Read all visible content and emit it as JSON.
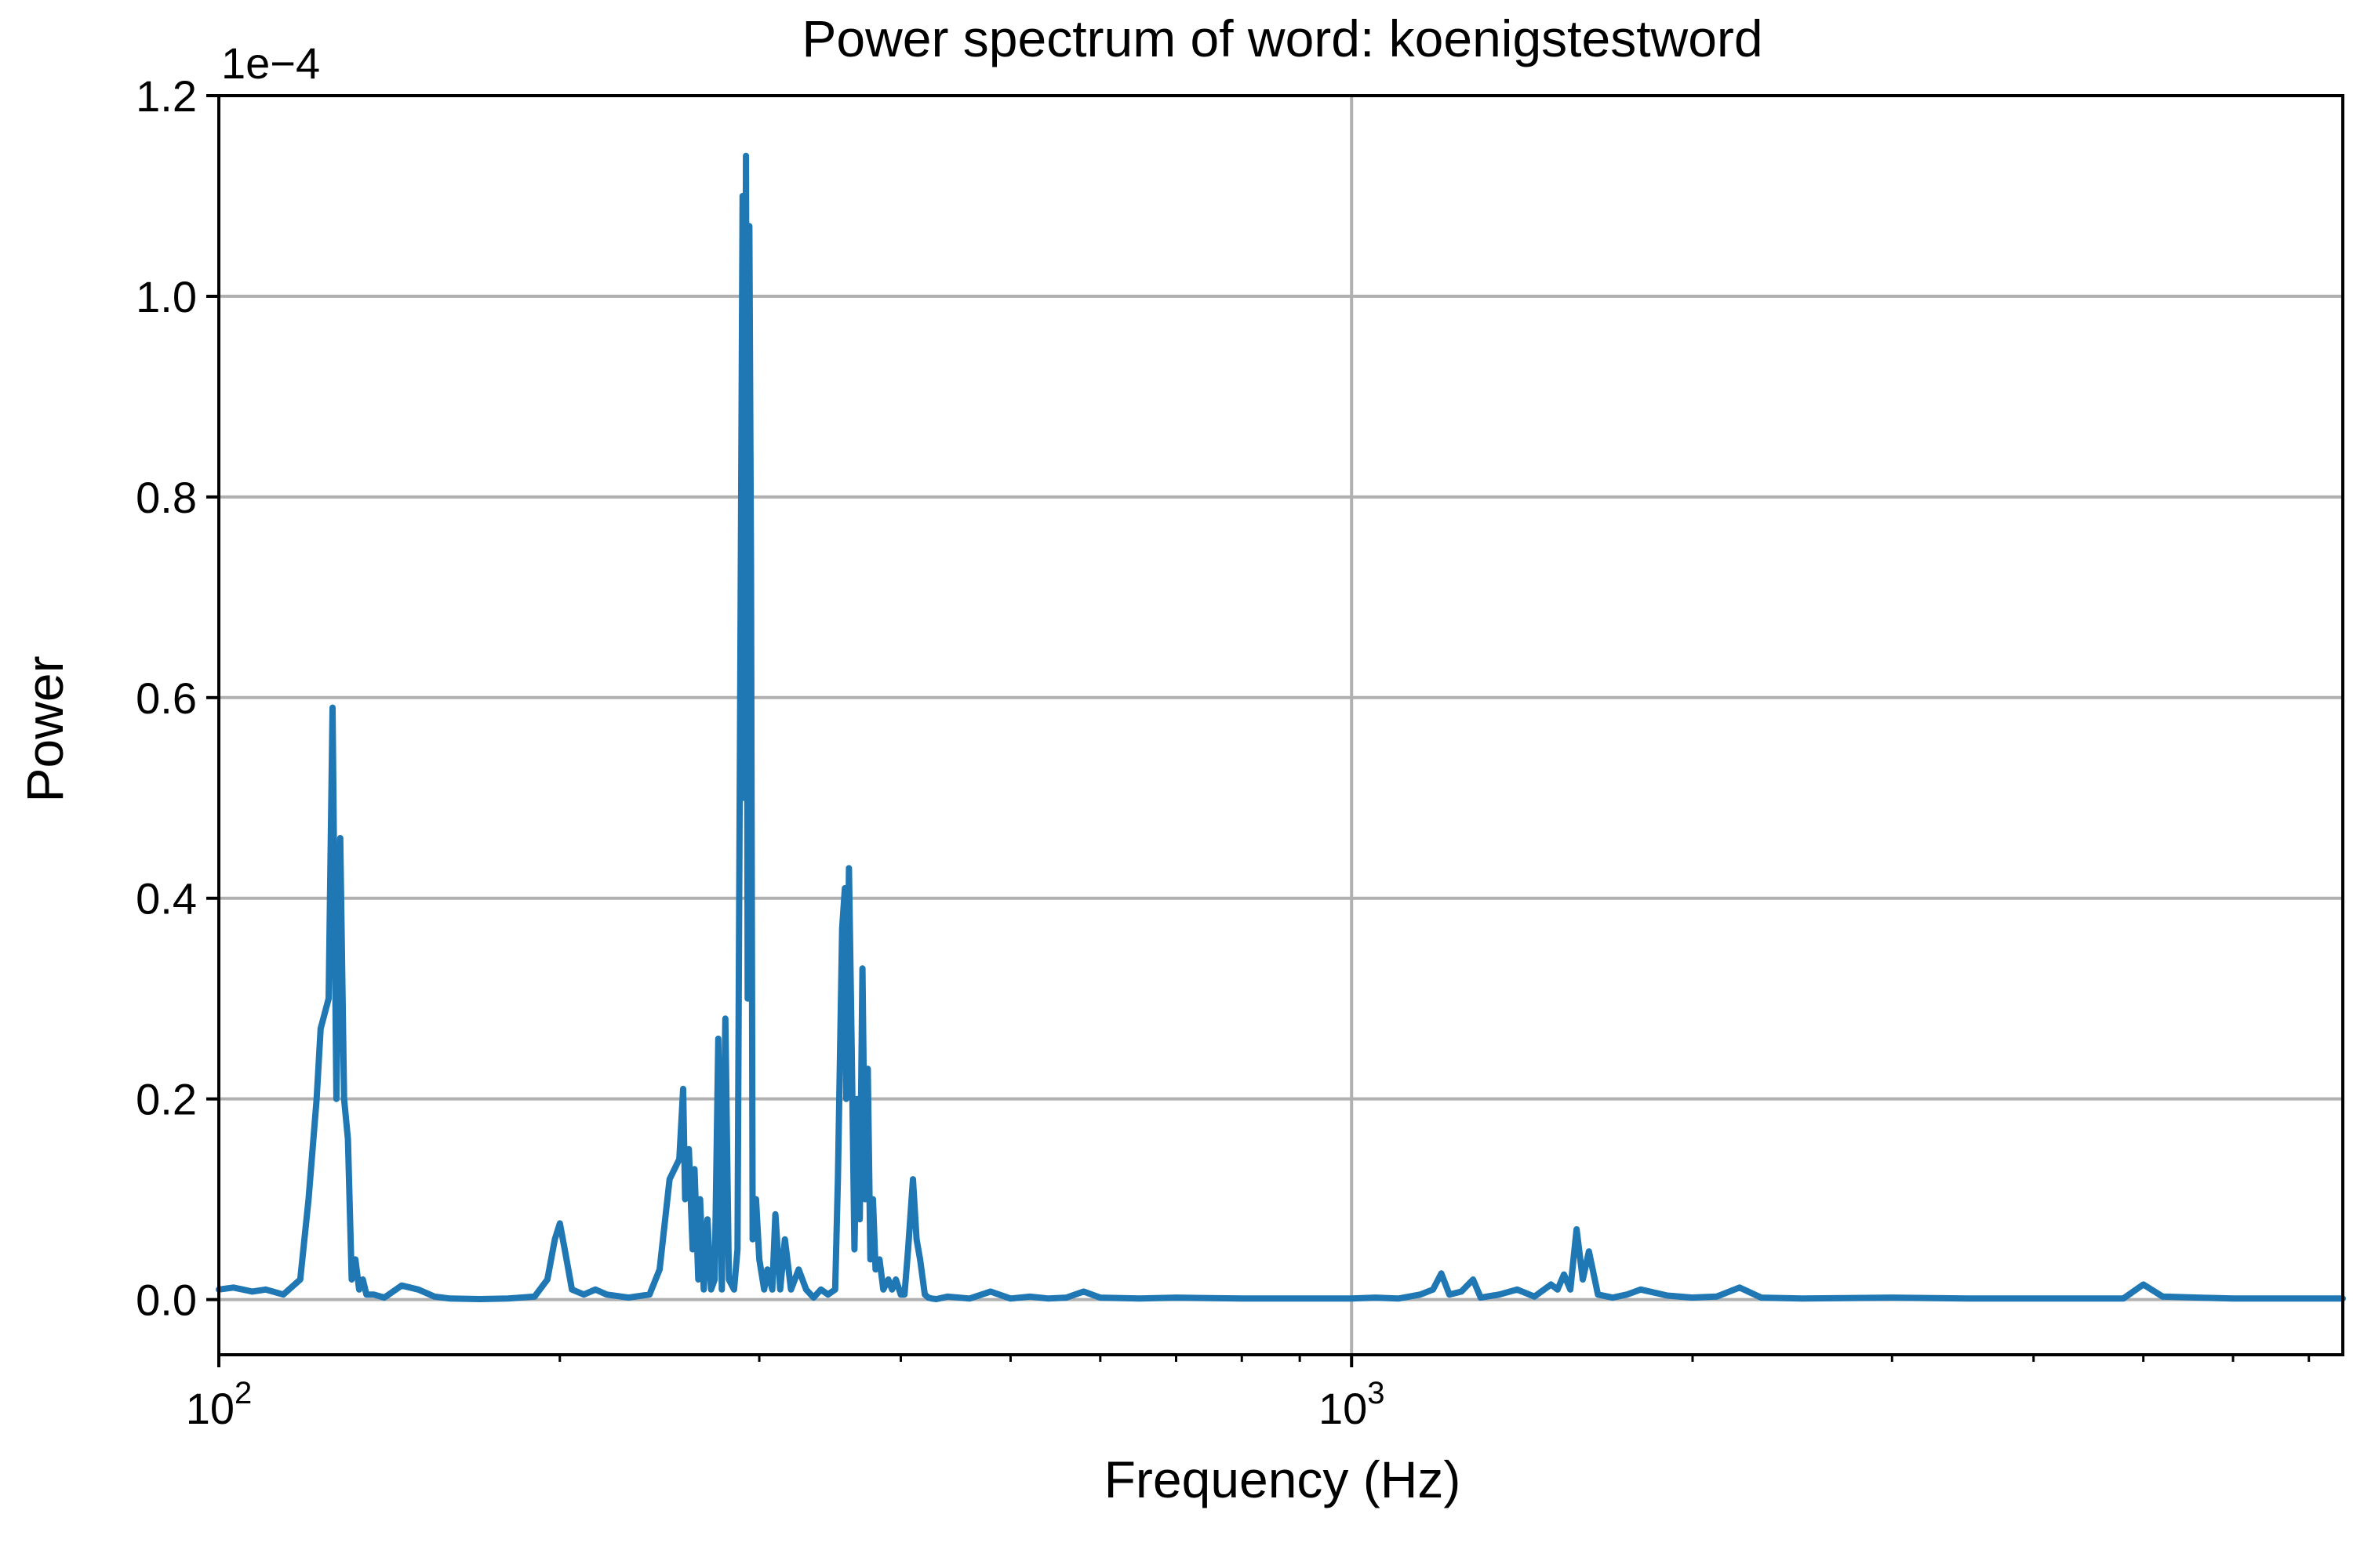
{
  "chart_data": {
    "type": "line",
    "title": "Power spectrum of word: koenigstestword",
    "xlabel": "Frequency (Hz)",
    "ylabel": "Power",
    "y_scale_label": "1e−4",
    "x_scale": "log",
    "xlim": [
      100,
      7500
    ],
    "ylim": [
      -0.055,
      1.2
    ],
    "y_multiplier": 0.0001,
    "grid": true,
    "line_color": "#1f77b4",
    "y_ticks": [
      {
        "value": 0.0,
        "label": "0.0"
      },
      {
        "value": 0.2,
        "label": "0.2"
      },
      {
        "value": 0.4,
        "label": "0.4"
      },
      {
        "value": 0.6,
        "label": "0.6"
      },
      {
        "value": 0.8,
        "label": "0.8"
      },
      {
        "value": 1.0,
        "label": "1.0"
      },
      {
        "value": 1.2,
        "label": "1.2"
      }
    ],
    "x_major_ticks": [
      {
        "value": 100,
        "base": "10",
        "exp": "2"
      },
      {
        "value": 1000,
        "base": "10",
        "exp": "3"
      }
    ],
    "x_minor_ticks": [
      200,
      300,
      400,
      500,
      600,
      700,
      800,
      900,
      2000,
      3000,
      4000,
      5000,
      6000,
      7000
    ],
    "series": [
      {
        "x": [
          100,
          103,
          105,
          107,
          110,
          114,
          118,
          120,
          122,
          123,
          125,
          126,
          127,
          128,
          129,
          130,
          131,
          132,
          133,
          134,
          135,
          137,
          140,
          145,
          150,
          155,
          160,
          170,
          180,
          190,
          195,
          198,
          200,
          202,
          205,
          210,
          215,
          220,
          230,
          240,
          245,
          250,
          255,
          257,
          258,
          260,
          262,
          263,
          265,
          266,
          268,
          270,
          272,
          274,
          276,
          278,
          280,
          282,
          285,
          287,
          290,
          291,
          292,
          293,
          294,
          295,
          296,
          298,
          300,
          303,
          305,
          308,
          310,
          313,
          316,
          320,
          325,
          330,
          335,
          340,
          345,
          350,
          352,
          355,
          357,
          358,
          360,
          362,
          364,
          366,
          368,
          370,
          372,
          374,
          376,
          378,
          380,
          383,
          386,
          390,
          393,
          396,
          400,
          403,
          406,
          410,
          413,
          416,
          420,
          423,
          426,
          430,
          440,
          460,
          480,
          500,
          520,
          540,
          560,
          580,
          600,
          650,
          700,
          800,
          900,
          1000,
          1050,
          1100,
          1150,
          1180,
          1200,
          1220,
          1250,
          1280,
          1300,
          1350,
          1400,
          1450,
          1500,
          1520,
          1540,
          1560,
          1580,
          1600,
          1620,
          1650,
          1700,
          1750,
          1800,
          1900,
          2000,
          2100,
          2200,
          2300,
          2500,
          3000,
          3500,
          4000,
          4500,
          4800,
          5000,
          5200,
          6000,
          7000,
          7500
        ],
        "y": [
          0.01,
          0.012,
          0.01,
          0.008,
          0.01,
          0.005,
          0.02,
          0.1,
          0.2,
          0.27,
          0.3,
          0.59,
          0.2,
          0.46,
          0.2,
          0.16,
          0.02,
          0.04,
          0.01,
          0.02,
          0.005,
          0.005,
          0.002,
          0.014,
          0.01,
          0.003,
          0.001,
          0.0005,
          0.001,
          0.003,
          0.02,
          0.06,
          0.076,
          0.05,
          0.01,
          0.005,
          0.01,
          0.005,
          0.002,
          0.005,
          0.03,
          0.12,
          0.14,
          0.21,
          0.1,
          0.15,
          0.05,
          0.13,
          0.02,
          0.1,
          0.01,
          0.08,
          0.01,
          0.02,
          0.26,
          0.01,
          0.28,
          0.02,
          0.01,
          0.05,
          1.1,
          0.5,
          1.14,
          0.3,
          1.07,
          0.73,
          0.06,
          0.1,
          0.04,
          0.01,
          0.03,
          0.01,
          0.085,
          0.01,
          0.06,
          0.01,
          0.03,
          0.01,
          0.002,
          0.01,
          0.005,
          0.01,
          0.12,
          0.37,
          0.41,
          0.2,
          0.43,
          0.25,
          0.05,
          0.2,
          0.08,
          0.33,
          0.1,
          0.23,
          0.04,
          0.1,
          0.03,
          0.04,
          0.01,
          0.02,
          0.01,
          0.02,
          0.005,
          0.005,
          0.05,
          0.12,
          0.06,
          0.04,
          0.005,
          0.002,
          0.001,
          0.0005,
          0.003,
          0.001,
          0.008,
          0.001,
          0.003,
          0.001,
          0.002,
          0.008,
          0.002,
          0.001,
          0.002,
          0.001,
          0.001,
          0.001,
          0.002,
          0.001,
          0.005,
          0.01,
          0.026,
          0.005,
          0.008,
          0.02,
          0.002,
          0.005,
          0.01,
          0.003,
          0.015,
          0.01,
          0.025,
          0.01,
          0.07,
          0.02,
          0.048,
          0.005,
          0.002,
          0.005,
          0.01,
          0.004,
          0.002,
          0.003,
          0.012,
          0.002,
          0.001,
          0.002,
          0.001,
          0.001,
          0.001,
          0.001,
          0.015,
          0.003,
          0.001,
          0.001,
          0.001
        ]
      }
    ]
  }
}
